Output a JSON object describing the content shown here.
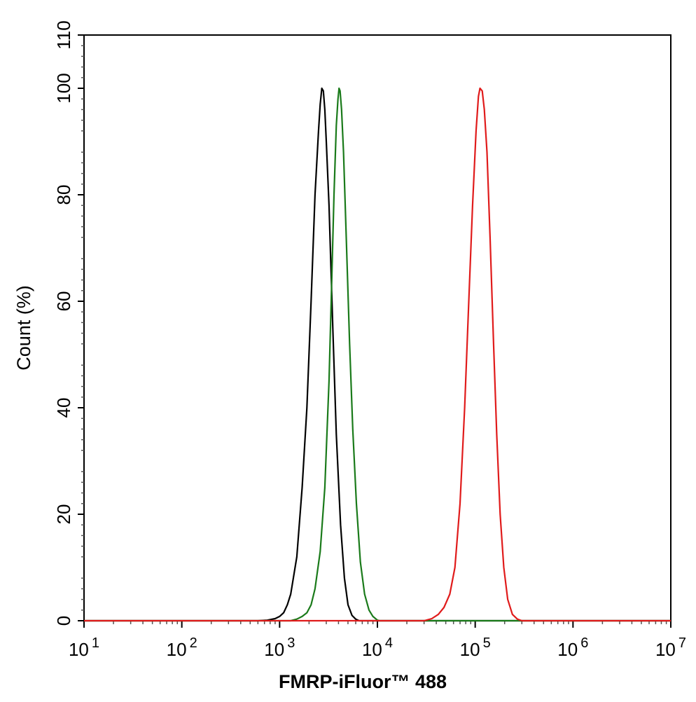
{
  "chart_data": {
    "type": "line",
    "title": "",
    "xlabel": "FMRP-iFluor™ 488",
    "ylabel": "Count  (%)",
    "x_scale": "log",
    "xlim": [
      10,
      10000000
    ],
    "ylim": [
      0,
      110
    ],
    "x_ticks": [
      {
        "value": 10,
        "base": "10",
        "exp": "1"
      },
      {
        "value": 100,
        "base": "10",
        "exp": "2"
      },
      {
        "value": 1000,
        "base": "10",
        "exp": "3"
      },
      {
        "value": 10000,
        "base": "10",
        "exp": "4"
      },
      {
        "value": 100000,
        "base": "10",
        "exp": "5"
      },
      {
        "value": 1000000,
        "base": "10",
        "exp": "6"
      },
      {
        "value": 10000000,
        "base": "10",
        "exp": "7"
      }
    ],
    "y_ticks": [
      0,
      20,
      40,
      60,
      80,
      100,
      110
    ],
    "grid": false,
    "legend": "none",
    "series": [
      {
        "color": "#000000",
        "points": [
          [
            10,
            0
          ],
          [
            600,
            0
          ],
          [
            750,
            0.1
          ],
          [
            900,
            0.4
          ],
          [
            1000,
            0.8
          ],
          [
            1100,
            1.5
          ],
          [
            1200,
            3
          ],
          [
            1300,
            5
          ],
          [
            1500,
            12
          ],
          [
            1700,
            25
          ],
          [
            1900,
            40
          ],
          [
            2100,
            60
          ],
          [
            2300,
            80
          ],
          [
            2500,
            92
          ],
          [
            2600,
            97
          ],
          [
            2700,
            100
          ],
          [
            2800,
            99.5
          ],
          [
            2900,
            96
          ],
          [
            3000,
            90
          ],
          [
            3200,
            78
          ],
          [
            3500,
            55
          ],
          [
            3800,
            35
          ],
          [
            4200,
            18
          ],
          [
            4600,
            8
          ],
          [
            5000,
            3
          ],
          [
            5500,
            1
          ],
          [
            6000,
            0.3
          ],
          [
            6500,
            0
          ],
          [
            10000000,
            0
          ]
        ]
      },
      {
        "color": "#1a7a1a",
        "points": [
          [
            10,
            0
          ],
          [
            1300,
            0
          ],
          [
            1500,
            0.3
          ],
          [
            1700,
            0.8
          ],
          [
            1900,
            1.5
          ],
          [
            2100,
            3
          ],
          [
            2300,
            6
          ],
          [
            2600,
            13
          ],
          [
            2900,
            25
          ],
          [
            3200,
            45
          ],
          [
            3400,
            63
          ],
          [
            3600,
            80
          ],
          [
            3800,
            93
          ],
          [
            3950,
            98
          ],
          [
            4050,
            100
          ],
          [
            4150,
            99.5
          ],
          [
            4300,
            96
          ],
          [
            4500,
            88
          ],
          [
            4800,
            72
          ],
          [
            5200,
            52
          ],
          [
            5600,
            36
          ],
          [
            6100,
            22
          ],
          [
            6700,
            11
          ],
          [
            7400,
            5
          ],
          [
            8200,
            2
          ],
          [
            9000,
            0.8
          ],
          [
            10000,
            0.1
          ],
          [
            10500,
            0
          ],
          [
            10000000,
            0
          ]
        ]
      },
      {
        "color": "#e01b1b",
        "points": [
          [
            10,
            0
          ],
          [
            30000,
            0
          ],
          [
            36000,
            0.4
          ],
          [
            42000,
            1.2
          ],
          [
            48000,
            2.5
          ],
          [
            55000,
            5
          ],
          [
            62000,
            10
          ],
          [
            70000,
            22
          ],
          [
            78000,
            40
          ],
          [
            86000,
            60
          ],
          [
            94000,
            78
          ],
          [
            102000,
            92
          ],
          [
            108000,
            98.5
          ],
          [
            112000,
            100
          ],
          [
            118000,
            99.5
          ],
          [
            124000,
            96
          ],
          [
            132000,
            88
          ],
          [
            142000,
            72
          ],
          [
            154000,
            52
          ],
          [
            166000,
            35
          ],
          [
            180000,
            20
          ],
          [
            196000,
            10
          ],
          [
            215000,
            4
          ],
          [
            240000,
            1.2
          ],
          [
            270000,
            0.3
          ],
          [
            300000,
            0
          ],
          [
            10000000,
            0
          ]
        ]
      }
    ]
  }
}
